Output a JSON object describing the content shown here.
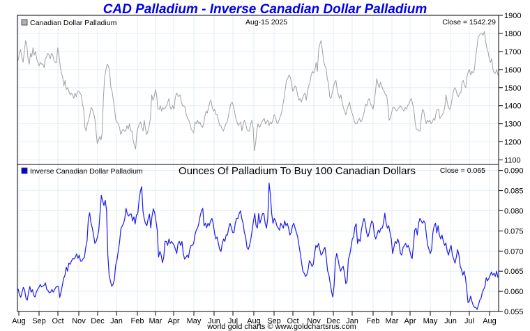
{
  "chart_data": {
    "type": "line",
    "title": "CAD Palladium - Inverse Canadian Dollar Palladium",
    "footer": "world gold charts © www.goldchartsrus.com",
    "date_label": "Aug-15  2025",
    "x_tick_labels": [
      "Aug",
      "Sep",
      "Oct",
      "Nov",
      "Dec",
      "Jan",
      "Feb",
      "Mar",
      "Apr",
      "May",
      "Jun",
      "Jul",
      "Aug",
      "Sep",
      "Oct",
      "Nov",
      "Dec",
      "Jan",
      "Feb",
      "Mar",
      "Apr",
      "May",
      "Jun",
      "Jul",
      "Aug"
    ],
    "x_range": [
      "2023-08",
      "2025-08-15"
    ],
    "grid": true,
    "panels": [
      {
        "id": "top",
        "legend": "Canadian Dollar Palladium",
        "legend_position": "top-left",
        "close_label": "Close = 1542.29",
        "ylim": [
          1075,
          1900
        ],
        "y_ticks": [
          1100,
          1200,
          1300,
          1400,
          1500,
          1600,
          1700,
          1800,
          1900
        ],
        "y_tick_labels": [
          "1100",
          "1200",
          "1300",
          "1400",
          "1500",
          "1600",
          "1700",
          "1800",
          "1900"
        ],
        "color": "#a0a0a0",
        "series": [
          {
            "name": "Canadian Dollar Palladium",
            "values": [
              1650,
              1690,
              1710,
              1670,
              1640,
              1700,
              1760,
              1740,
              1660,
              1630,
              1690,
              1670,
              1720,
              1680,
              1700,
              1660,
              1640,
              1620,
              1640,
              1630,
              1630,
              1610,
              1660,
              1670,
              1690,
              1680,
              1660,
              1690,
              1680,
              1650,
              1640,
              1640,
              1720,
              1680,
              1620,
              1580,
              1560,
              1510,
              1540,
              1490,
              1500,
              1480,
              1460,
              1470,
              1460,
              1440,
              1470,
              1450,
              1480,
              1480,
              1470,
              1460,
              1410,
              1380,
              1280,
              1260,
              1300,
              1320,
              1350,
              1390,
              1380,
              1360,
              1330,
              1260,
              1190,
              1210,
              1230,
              1210,
              1250,
              1450,
              1560,
              1600,
              1630,
              1620,
              1590,
              1500,
              1480,
              1430,
              1380,
              1320,
              1310,
              1300,
              1280,
              1240,
              1260,
              1270,
              1260,
              1260,
              1290,
              1270,
              1300,
              1260,
              1260,
              1210,
              1180,
              1160,
              1250,
              1280,
              1300,
              1310,
              1280,
              1260,
              1320,
              1270,
              1240,
              1260,
              1290,
              1330,
              1460,
              1430,
              1450,
              1490,
              1460,
              1380,
              1380,
              1400,
              1370,
              1390,
              1380,
              1390,
              1400,
              1420,
              1440,
              1390,
              1380,
              1400,
              1380,
              1440,
              1470,
              1460,
              1450,
              1460,
              1420,
              1400,
              1400,
              1390,
              1350,
              1330,
              1320,
              1300,
              1270,
              1260,
              1250,
              1310,
              1300,
              1320,
              1300,
              1310,
              1290,
              1280,
              1300,
              1340,
              1370,
              1360,
              1390,
              1420,
              1430,
              1390,
              1370,
              1380,
              1350,
              1350,
              1320,
              1290,
              1290,
              1270,
              1260,
              1280,
              1300,
              1310,
              1340,
              1380,
              1410,
              1420,
              1400,
              1370,
              1330,
              1310,
              1290,
              1300,
              1310,
              1260,
              1300,
              1320,
              1300,
              1270,
              1260,
              1260,
              1300,
              1320,
              1280,
              1150,
              1190,
              1260,
              1300,
              1280,
              1290,
              1310,
              1320,
              1330,
              1300,
              1310,
              1320,
              1290,
              1310,
              1300,
              1320,
              1350,
              1340,
              1310,
              1300,
              1320,
              1340,
              1360,
              1400,
              1440,
              1490,
              1540,
              1550,
              1570,
              1560,
              1530,
              1480,
              1490,
              1510,
              1500,
              1460,
              1430,
              1440,
              1420,
              1440,
              1460,
              1470,
              1430,
              1480,
              1510,
              1530,
              1570,
              1590,
              1580,
              1600,
              1640,
              1590,
              1710,
              1740,
              1760,
              1710,
              1650,
              1620,
              1610,
              1550,
              1520,
              1450,
              1440,
              1470,
              1500,
              1530,
              1540,
              1490,
              1460,
              1440,
              1460,
              1420,
              1390,
              1370,
              1350,
              1380,
              1400,
              1420,
              1380,
              1360,
              1340,
              1310,
              1300,
              1300,
              1320,
              1330,
              1310,
              1320,
              1340,
              1370,
              1410,
              1400,
              1430,
              1440,
              1410,
              1400,
              1380,
              1420,
              1480,
              1550,
              1520,
              1500,
              1530,
              1510,
              1490,
              1480,
              1460,
              1460,
              1400,
              1320,
              1330,
              1360,
              1390,
              1390,
              1380,
              1370,
              1380,
              1390,
              1400,
              1390,
              1380,
              1370,
              1390,
              1380,
              1400,
              1410,
              1430,
              1440,
              1410,
              1380,
              1310,
              1270,
              1270,
              1260,
              1260,
              1330,
              1380,
              1370,
              1330,
              1300,
              1320,
              1310,
              1320,
              1300,
              1310,
              1330,
              1320,
              1360,
              1380,
              1380,
              1330,
              1340,
              1350,
              1360,
              1390,
              1460,
              1420,
              1390,
              1380,
              1400,
              1440,
              1480,
              1500,
              1490,
              1460,
              1450,
              1470,
              1470,
              1530,
              1540,
              1510,
              1500,
              1560,
              1590,
              1600,
              1570,
              1590,
              1580,
              1600,
              1670,
              1720,
              1780,
              1790,
              1800,
              1800,
              1790,
              1810,
              1760,
              1720,
              1700,
              1660,
              1640,
              1660,
              1600,
              1580,
              1580,
              1600,
              1570
            ]
          }
        ]
      },
      {
        "id": "bottom",
        "legend": "Inverse Canadian Dollar Palladium",
        "legend_position": "top-left",
        "subtitle": "Ounces Of Palladium To Buy 100 Canadian Dollars",
        "close_label": "Close = 0.065",
        "ylim": [
          0.055,
          0.0915
        ],
        "y_ticks": [
          0.055,
          0.06,
          0.065,
          0.07,
          0.075,
          0.08,
          0.085,
          0.09
        ],
        "y_tick_labels": [
          "0.055",
          "0.060",
          "0.065",
          "0.070",
          "0.075",
          "0.080",
          "0.085",
          "0.090"
        ],
        "color": "#1a1aee",
        "series": [
          {
            "name": "Inverse Canadian Dollar Palladium",
            "values": [
              0.0606,
              0.0592,
              0.0585,
              0.0598,
              0.061,
              0.0603,
              0.0583,
              0.0578,
              0.0597,
              0.0612,
              0.0598,
              0.0604,
              0.059,
              0.0586,
              0.0598,
              0.0605,
              0.061,
              0.0617,
              0.0611,
              0.0613,
              0.0615,
              0.0621,
              0.0605,
              0.0602,
              0.0596,
              0.0598,
              0.0605,
              0.0598,
              0.0604,
              0.061,
              0.0612,
              0.0612,
              0.0585,
              0.0598,
              0.0615,
              0.0632,
              0.064,
              0.066,
              0.065,
              0.067,
              0.0667,
              0.0675,
              0.0682,
              0.068,
              0.0685,
              0.0693,
              0.0682,
              0.069,
              0.0675,
              0.0675,
              0.0681,
              0.0685,
              0.0709,
              0.0725,
              0.078,
              0.0795,
              0.077,
              0.0758,
              0.074,
              0.0719,
              0.0724,
              0.0735,
              0.0751,
              0.0795,
              0.0838,
              0.0825,
              0.0813,
              0.0826,
              0.0801,
              0.069,
              0.064,
              0.0625,
              0.0613,
              0.0617,
              0.0629,
              0.0665,
              0.0677,
              0.07,
              0.0722,
              0.0755,
              0.0762,
              0.0768,
              0.078,
              0.0806,
              0.0792,
              0.0787,
              0.0792,
              0.0792,
              0.0775,
              0.0785,
              0.0767,
              0.079,
              0.0792,
              0.0826,
              0.0848,
              0.086,
              0.08,
              0.078,
              0.0768,
              0.0763,
              0.078,
              0.0792,
              0.0758,
              0.0787,
              0.0805,
              0.0795,
              0.0775,
              0.0752,
              0.0685,
              0.0699,
              0.069,
              0.0671,
              0.0685,
              0.0724,
              0.0724,
              0.0714,
              0.073,
              0.0719,
              0.0724,
              0.0719,
              0.0714,
              0.0704,
              0.0694,
              0.0719,
              0.0724,
              0.0714,
              0.0724,
              0.0694,
              0.068,
              0.0684,
              0.069,
              0.0684,
              0.0704,
              0.0714,
              0.0714,
              0.0719,
              0.074,
              0.0752,
              0.0757,
              0.0769,
              0.0787,
              0.08,
              0.0806,
              0.0763,
              0.0769,
              0.0758,
              0.0769,
              0.0763,
              0.0775,
              0.0781,
              0.0769,
              0.0746,
              0.073,
              0.0735,
              0.0719,
              0.0704,
              0.0699,
              0.0719,
              0.073,
              0.0724,
              0.074,
              0.074,
              0.0758,
              0.0769,
              0.0758,
              0.0746,
              0.0746,
              0.0769,
              0.0781,
              0.0781,
              0.0793,
              0.08,
              0.0781,
              0.0769,
              0.0746,
              0.0735,
              0.0709,
              0.0704,
              0.0714,
              0.073,
              0.0752,
              0.0775,
              0.0793,
              0.0763,
              0.0757,
              0.0793,
              0.0769,
              0.0781,
              0.0793,
              0.0793,
              0.0769,
              0.0757,
              0.0781,
              0.0869,
              0.084,
              0.0793,
              0.0769,
              0.0781,
              0.0775,
              0.0763,
              0.0757,
              0.0752,
              0.0769,
              0.0763,
              0.0757,
              0.0775,
              0.0763,
              0.0769,
              0.0757,
              0.074,
              0.0746,
              0.0763,
              0.0769,
              0.0757,
              0.0746,
              0.0735,
              0.0714,
              0.0694,
              0.0671,
              0.065,
              0.0645,
              0.0637,
              0.0641,
              0.0654,
              0.0676,
              0.0671,
              0.0662,
              0.0667,
              0.0694,
              0.0714,
              0.0709,
              0.0719,
              0.0704,
              0.069,
              0.0694,
              0.0704,
              0.0709,
              0.0683,
              0.0651,
              0.0641,
              0.062,
              0.06,
              0.0586,
              0.0614,
              0.0676,
              0.0694,
              0.068,
              0.0662,
              0.065,
              0.0658,
              0.0662,
              0.0645,
              0.0619,
              0.0625,
              0.068,
              0.069,
              0.0709,
              0.073,
              0.0735,
              0.076,
              0.0768,
              0.0719,
              0.073,
              0.0724,
              0.0752,
              0.0769,
              0.0781,
              0.0769,
              0.0746,
              0.0735,
              0.0746,
              0.0763,
              0.0775,
              0.0769,
              0.074,
              0.073,
              0.074,
              0.0752,
              0.0746,
              0.0757,
              0.0757,
              0.0769,
              0.0794,
              0.0769,
              0.0757,
              0.0763,
              0.0746,
              0.073,
              0.0694,
              0.0709,
              0.0724,
              0.0719,
              0.073,
              0.0719,
              0.0694,
              0.069,
              0.0709,
              0.0714,
              0.0719,
              0.0709,
              0.0714,
              0.0704,
              0.069,
              0.0681,
              0.0714,
              0.0752,
              0.0757,
              0.074,
              0.0769,
              0.0781,
              0.0775,
              0.0769,
              0.0775,
              0.0769,
              0.074,
              0.0714,
              0.0704,
              0.0694,
              0.0704,
              0.0746,
              0.0763,
              0.0769,
              0.0745,
              0.0763,
              0.074,
              0.073,
              0.074,
              0.0724,
              0.0714,
              0.072,
              0.07,
              0.069,
              0.0704,
              0.0714,
              0.069,
              0.068,
              0.067,
              0.0685,
              0.0704,
              0.069,
              0.0662,
              0.0654,
              0.064,
              0.065,
              0.0635,
              0.0605,
              0.0572,
              0.0575,
              0.0588,
              0.0575,
              0.0565,
              0.056,
              0.056,
              0.0555,
              0.0566,
              0.0578,
              0.0582,
              0.0598,
              0.0605,
              0.0612,
              0.0634,
              0.0626,
              0.0632,
              0.064,
              0.0648,
              0.064,
              0.0645,
              0.0637,
              0.065,
              0.0634
            ]
          }
        ]
      }
    ]
  }
}
